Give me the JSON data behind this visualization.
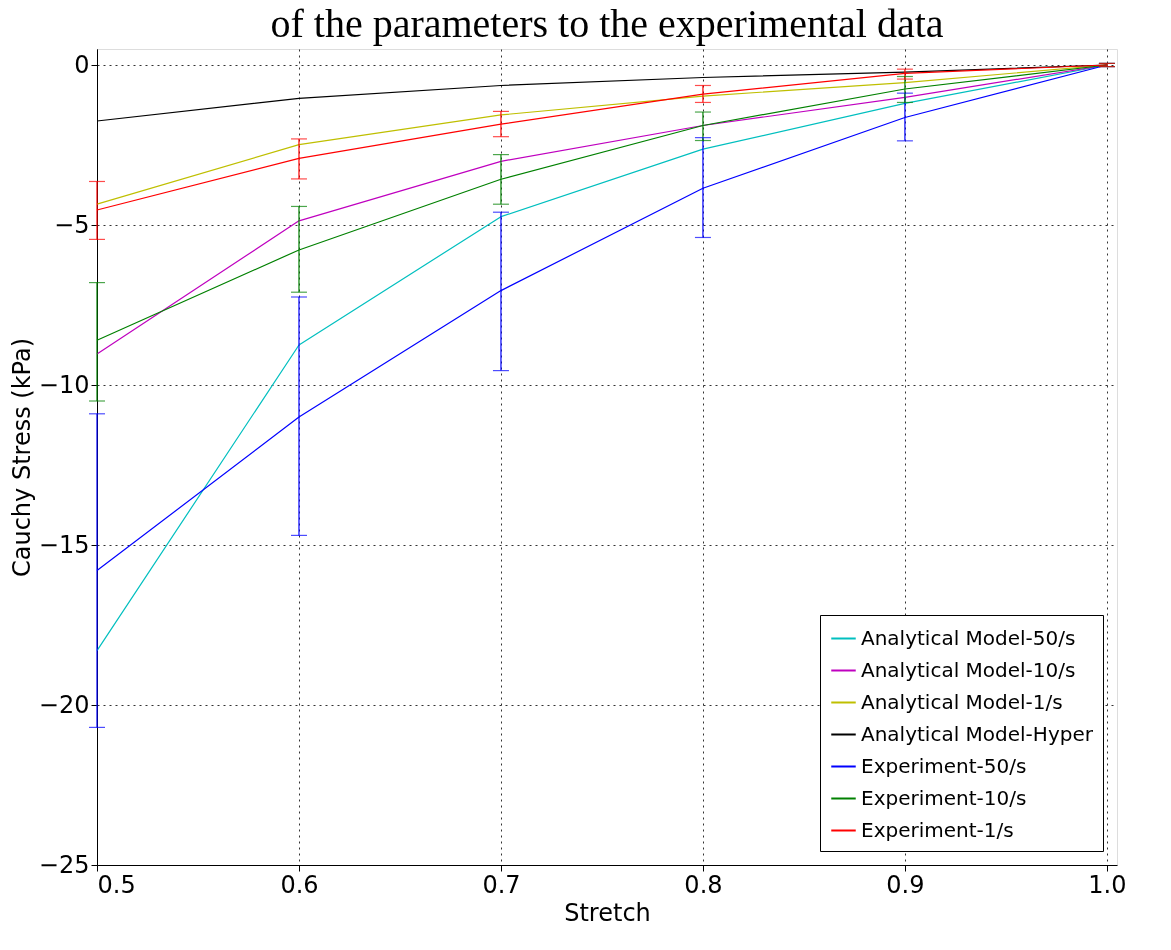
{
  "chart_data": {
    "type": "line",
    "title": "of the parameters to the experimental data",
    "xlabel": "Stretch",
    "ylabel": "Cauchy Stress (kPa)",
    "x": [
      0.5,
      0.6,
      0.7,
      0.8,
      0.9,
      1.0
    ],
    "xlim": [
      0.5,
      1.005
    ],
    "xticks": [
      {
        "value": 0.5,
        "label": "0.5"
      },
      {
        "value": 0.6,
        "label": "0.6"
      },
      {
        "value": 0.7,
        "label": "0.7"
      },
      {
        "value": 0.8,
        "label": "0.8"
      },
      {
        "value": 0.9,
        "label": "0.9"
      },
      {
        "value": 1.0,
        "label": "1.0"
      }
    ],
    "ylim": [
      -25,
      0.5
    ],
    "yticks": [
      {
        "value": -25,
        "label": "−25"
      },
      {
        "value": -20,
        "label": "−20"
      },
      {
        "value": -15,
        "label": "−15"
      },
      {
        "value": -10,
        "label": "−10"
      },
      {
        "value": -5,
        "label": "−5"
      },
      0
    ],
    "grid": true,
    "legend": "bottom right",
    "marker": "none",
    "line_style": "solid",
    "series": [
      {
        "name": "Analytical Model-50/s",
        "color": "#00bfbf",
        "values": [
          -18.3,
          -8.75,
          -4.74,
          -2.63,
          -1.2,
          0
        ]
      },
      {
        "name": "Analytical Model-10/s",
        "color": "#bf00bf",
        "values": [
          -9.03,
          -4.87,
          -3.01,
          -1.89,
          -1.01,
          0
        ]
      },
      {
        "name": "Analytical Model-1/s",
        "color": "#bfbf00",
        "values": [
          -4.35,
          -2.49,
          -1.56,
          -0.97,
          -0.55,
          0
        ]
      },
      {
        "name": "Analytical Model-Hyper",
        "color": "#000000",
        "values": [
          -1.75,
          -1.04,
          -0.64,
          -0.39,
          -0.22,
          0
        ]
      },
      {
        "name": "Experiment-50/s",
        "color": "#0000ff",
        "values": [
          -15.8,
          -11.0,
          -7.05,
          -3.85,
          -1.64,
          0
        ],
        "errors": [
          [
            -20.7,
            -10.9
          ],
          [
            -14.7,
            -7.25
          ],
          [
            -9.55,
            -4.6
          ],
          [
            -5.39,
            -2.27
          ],
          [
            -2.37,
            -0.88
          ],
          [
            -0.05,
            0.05
          ]
        ]
      },
      {
        "name": "Experiment-10/s",
        "color": "#008000",
        "values": [
          -8.6,
          -5.78,
          -3.57,
          -1.89,
          -0.75,
          0
        ],
        "errors": [
          [
            -10.5,
            -6.8
          ],
          [
            -7.1,
            -4.42
          ],
          [
            -4.35,
            -2.8
          ],
          [
            -2.36,
            -1.47
          ],
          [
            -1.17,
            -0.36
          ],
          [
            -0.05,
            0.05
          ]
        ]
      },
      {
        "name": "Experiment-1/s",
        "color": "#ff0000",
        "values": [
          -4.53,
          -2.92,
          -1.85,
          -0.91,
          -0.26,
          0
        ],
        "errors": [
          [
            -5.45,
            -3.64
          ],
          [
            -3.56,
            -2.31
          ],
          [
            -2.24,
            -1.45
          ],
          [
            -1.17,
            -0.64
          ],
          [
            -0.44,
            -0.13
          ],
          [
            -0.05,
            0.05
          ]
        ]
      }
    ]
  }
}
